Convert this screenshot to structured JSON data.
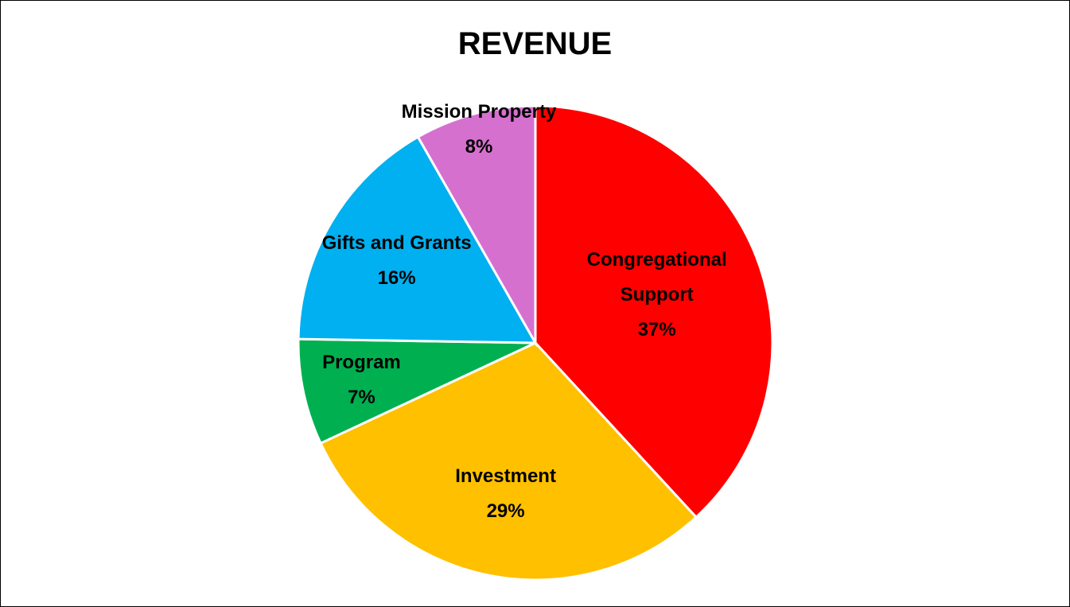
{
  "chart_data": {
    "type": "pie",
    "title": "REVENUE",
    "categories": [
      "Congregational Support",
      "Investment",
      "Program",
      "Gifts and Grants",
      "Mission Property"
    ],
    "values": [
      37,
      29,
      7,
      16,
      8
    ],
    "value_labels": [
      "37%",
      "29%",
      "7%",
      "16%",
      "8%"
    ],
    "colors": [
      "#ff0000",
      "#ffc000",
      "#00b050",
      "#00b0f0",
      "#d670cf"
    ]
  }
}
